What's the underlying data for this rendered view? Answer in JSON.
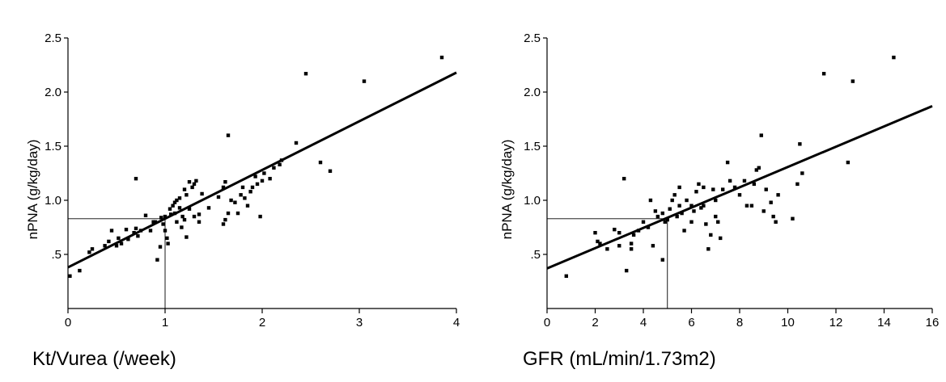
{
  "chart_data": [
    {
      "type": "scatter",
      "xlabel": "Kt/Vurea (/week)",
      "ylabel": "nPNA (g/kg/day)",
      "xlim": [
        0,
        4
      ],
      "ylim": [
        0,
        2.5
      ],
      "xticks": [
        "0",
        "1",
        "2",
        "3",
        "4"
      ],
      "xtick_values": [
        0,
        1,
        2,
        3,
        4
      ],
      "yticks": [
        ".5",
        "1.0",
        "1.5",
        "2.0",
        "2.5"
      ],
      "ytick_values": [
        0.5,
        1.0,
        1.5,
        2.0,
        2.5
      ],
      "fit_line": [
        [
          0,
          0.38
        ],
        [
          4,
          2.18
        ]
      ],
      "reference": {
        "x": 1.0,
        "y": 0.83
      },
      "points": [
        [
          0.02,
          0.3
        ],
        [
          0.12,
          0.35
        ],
        [
          0.22,
          0.52
        ],
        [
          0.25,
          0.55
        ],
        [
          0.38,
          0.58
        ],
        [
          0.42,
          0.62
        ],
        [
          0.45,
          0.72
        ],
        [
          0.5,
          0.58
        ],
        [
          0.52,
          0.65
        ],
        [
          0.55,
          0.6
        ],
        [
          0.6,
          0.73
        ],
        [
          0.62,
          0.64
        ],
        [
          0.68,
          0.7
        ],
        [
          0.7,
          0.74
        ],
        [
          0.7,
          1.2
        ],
        [
          0.72,
          0.67
        ],
        [
          0.75,
          0.72
        ],
        [
          0.8,
          0.86
        ],
        [
          0.85,
          0.72
        ],
        [
          0.88,
          0.8
        ],
        [
          0.9,
          0.8
        ],
        [
          0.92,
          0.45
        ],
        [
          0.95,
          0.57
        ],
        [
          0.96,
          0.84
        ],
        [
          0.98,
          0.78
        ],
        [
          1.0,
          0.72
        ],
        [
          1.0,
          0.85
        ],
        [
          1.02,
          0.65
        ],
        [
          1.03,
          0.6
        ],
        [
          1.05,
          0.92
        ],
        [
          1.06,
          0.87
        ],
        [
          1.08,
          0.95
        ],
        [
          1.1,
          0.98
        ],
        [
          1.1,
          0.88
        ],
        [
          1.12,
          1.0
        ],
        [
          1.12,
          0.8
        ],
        [
          1.15,
          0.93
        ],
        [
          1.15,
          1.02
        ],
        [
          1.17,
          0.75
        ],
        [
          1.18,
          0.85
        ],
        [
          1.2,
          0.82
        ],
        [
          1.2,
          1.1
        ],
        [
          1.22,
          0.66
        ],
        [
          1.22,
          1.05
        ],
        [
          1.25,
          1.17
        ],
        [
          1.25,
          0.92
        ],
        [
          1.28,
          1.12
        ],
        [
          1.3,
          1.15
        ],
        [
          1.3,
          0.85
        ],
        [
          1.32,
          1.18
        ],
        [
          1.35,
          0.8
        ],
        [
          1.35,
          0.87
        ],
        [
          1.38,
          1.06
        ],
        [
          1.45,
          0.93
        ],
        [
          1.55,
          1.03
        ],
        [
          1.6,
          1.12
        ],
        [
          1.6,
          0.78
        ],
        [
          1.62,
          0.82
        ],
        [
          1.62,
          1.17
        ],
        [
          1.65,
          1.6
        ],
        [
          1.65,
          0.88
        ],
        [
          1.68,
          1.0
        ],
        [
          1.72,
          0.98
        ],
        [
          1.75,
          0.88
        ],
        [
          1.78,
          1.05
        ],
        [
          1.8,
          1.12
        ],
        [
          1.82,
          1.02
        ],
        [
          1.85,
          0.95
        ],
        [
          1.88,
          1.08
        ],
        [
          1.9,
          1.12
        ],
        [
          1.93,
          1.22
        ],
        [
          1.95,
          1.15
        ],
        [
          1.98,
          0.85
        ],
        [
          2.0,
          1.18
        ],
        [
          2.02,
          1.25
        ],
        [
          2.08,
          1.2
        ],
        [
          2.12,
          1.3
        ],
        [
          2.18,
          1.33
        ],
        [
          2.2,
          1.37
        ],
        [
          2.35,
          1.53
        ],
        [
          2.6,
          1.35
        ],
        [
          2.7,
          1.27
        ],
        [
          2.45,
          2.17
        ],
        [
          3.05,
          2.1
        ],
        [
          3.85,
          2.32
        ]
      ]
    },
    {
      "type": "scatter",
      "xlabel": "GFR (mL/min/1.73m2)",
      "ylabel": "nPNA (g/kg/day)",
      "xlim": [
        0,
        16
      ],
      "ylim": [
        0,
        2.5
      ],
      "xticks": [
        "0",
        "2",
        "4",
        "6",
        "8",
        "10",
        "12",
        "14",
        "16"
      ],
      "xtick_values": [
        0,
        2,
        4,
        6,
        8,
        10,
        12,
        14,
        16
      ],
      "yticks": [
        ".5",
        "1.0",
        "1.5",
        "2.0",
        "2.5"
      ],
      "ytick_values": [
        0.5,
        1.0,
        1.5,
        2.0,
        2.5
      ],
      "fit_line": [
        [
          0,
          0.37
        ],
        [
          16,
          1.87
        ]
      ],
      "reference": {
        "x": 5.0,
        "y": 0.83
      },
      "points": [
        [
          0.8,
          0.3
        ],
        [
          2.0,
          0.7
        ],
        [
          2.1,
          0.62
        ],
        [
          2.2,
          0.6
        ],
        [
          2.5,
          0.55
        ],
        [
          2.8,
          0.73
        ],
        [
          3.0,
          0.7
        ],
        [
          3.0,
          0.58
        ],
        [
          3.2,
          1.2
        ],
        [
          3.3,
          0.35
        ],
        [
          3.5,
          0.55
        ],
        [
          3.5,
          0.6
        ],
        [
          3.6,
          0.68
        ],
        [
          3.8,
          0.72
        ],
        [
          4.0,
          0.8
        ],
        [
          4.2,
          0.75
        ],
        [
          4.3,
          1.0
        ],
        [
          4.4,
          0.58
        ],
        [
          4.5,
          0.9
        ],
        [
          4.6,
          0.85
        ],
        [
          4.8,
          0.88
        ],
        [
          4.8,
          0.45
        ],
        [
          4.9,
          0.8
        ],
        [
          5.0,
          0.82
        ],
        [
          5.1,
          0.92
        ],
        [
          5.2,
          1.0
        ],
        [
          5.3,
          1.05
        ],
        [
          5.4,
          0.85
        ],
        [
          5.5,
          0.95
        ],
        [
          5.5,
          1.12
        ],
        [
          5.6,
          0.88
        ],
        [
          5.7,
          0.72
        ],
        [
          5.8,
          1.0
        ],
        [
          6.0,
          0.95
        ],
        [
          6.0,
          0.8
        ],
        [
          6.1,
          0.9
        ],
        [
          6.2,
          1.08
        ],
        [
          6.3,
          1.15
        ],
        [
          6.4,
          0.93
        ],
        [
          6.5,
          0.95
        ],
        [
          6.5,
          1.12
        ],
        [
          6.6,
          0.78
        ],
        [
          6.7,
          0.55
        ],
        [
          6.8,
          0.68
        ],
        [
          6.9,
          1.1
        ],
        [
          7.0,
          0.85
        ],
        [
          7.0,
          1.0
        ],
        [
          7.1,
          0.8
        ],
        [
          7.2,
          0.65
        ],
        [
          7.3,
          1.1
        ],
        [
          7.5,
          1.35
        ],
        [
          7.6,
          1.18
        ],
        [
          7.8,
          1.12
        ],
        [
          8.0,
          1.05
        ],
        [
          8.2,
          1.18
        ],
        [
          8.3,
          0.95
        ],
        [
          8.5,
          0.95
        ],
        [
          8.6,
          1.15
        ],
        [
          8.7,
          1.28
        ],
        [
          8.8,
          1.3
        ],
        [
          8.9,
          1.6
        ],
        [
          9.0,
          0.9
        ],
        [
          9.1,
          1.1
        ],
        [
          9.3,
          0.98
        ],
        [
          9.4,
          0.85
        ],
        [
          9.5,
          0.8
        ],
        [
          9.6,
          1.05
        ],
        [
          10.2,
          0.83
        ],
        [
          10.4,
          1.15
        ],
        [
          10.5,
          1.52
        ],
        [
          10.6,
          1.25
        ],
        [
          11.5,
          2.17
        ],
        [
          12.5,
          1.35
        ],
        [
          12.7,
          2.1
        ],
        [
          14.4,
          2.32
        ]
      ]
    }
  ]
}
